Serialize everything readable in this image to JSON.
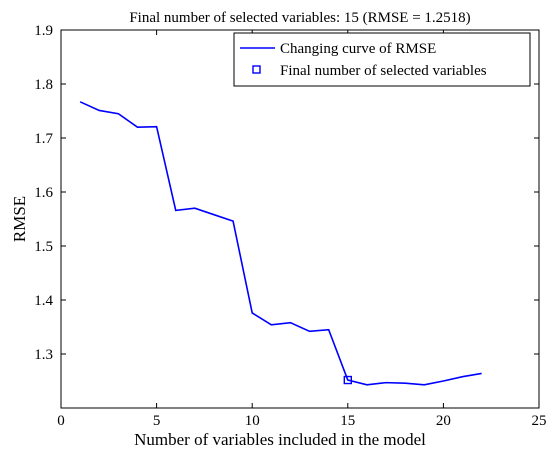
{
  "chart_data": {
    "type": "line",
    "title": "Final number of selected variables: 15  (RMSE = 1.2518)",
    "xlabel": "Number of variables included in the model",
    "ylabel": "RMSE",
    "xlim": [
      0,
      25
    ],
    "ylim": [
      1.2,
      1.9
    ],
    "xticks": [
      0,
      5,
      10,
      15,
      20,
      25
    ],
    "yticks": [
      1.3,
      1.4,
      1.5,
      1.6,
      1.7,
      1.8,
      1.9
    ],
    "grid": false,
    "legend_position": "top-right",
    "series": [
      {
        "name": "Changing curve of RMSE",
        "color": "#0000ff",
        "x": [
          1,
          2,
          3,
          4,
          5,
          6,
          7,
          8,
          9,
          10,
          11,
          12,
          13,
          14,
          15,
          16,
          17,
          18,
          19,
          20,
          21,
          22
        ],
        "y": [
          1.767,
          1.751,
          1.745,
          1.72,
          1.721,
          1.566,
          1.57,
          1.558,
          1.546,
          1.376,
          1.354,
          1.358,
          1.342,
          1.345,
          1.2518,
          1.243,
          1.247,
          1.246,
          1.243,
          1.25,
          1.258,
          1.264
        ]
      }
    ],
    "marker": {
      "name": "Final number of selected variables",
      "x": 15,
      "y": 1.2518,
      "color": "#0000ff",
      "shape": "square"
    }
  }
}
